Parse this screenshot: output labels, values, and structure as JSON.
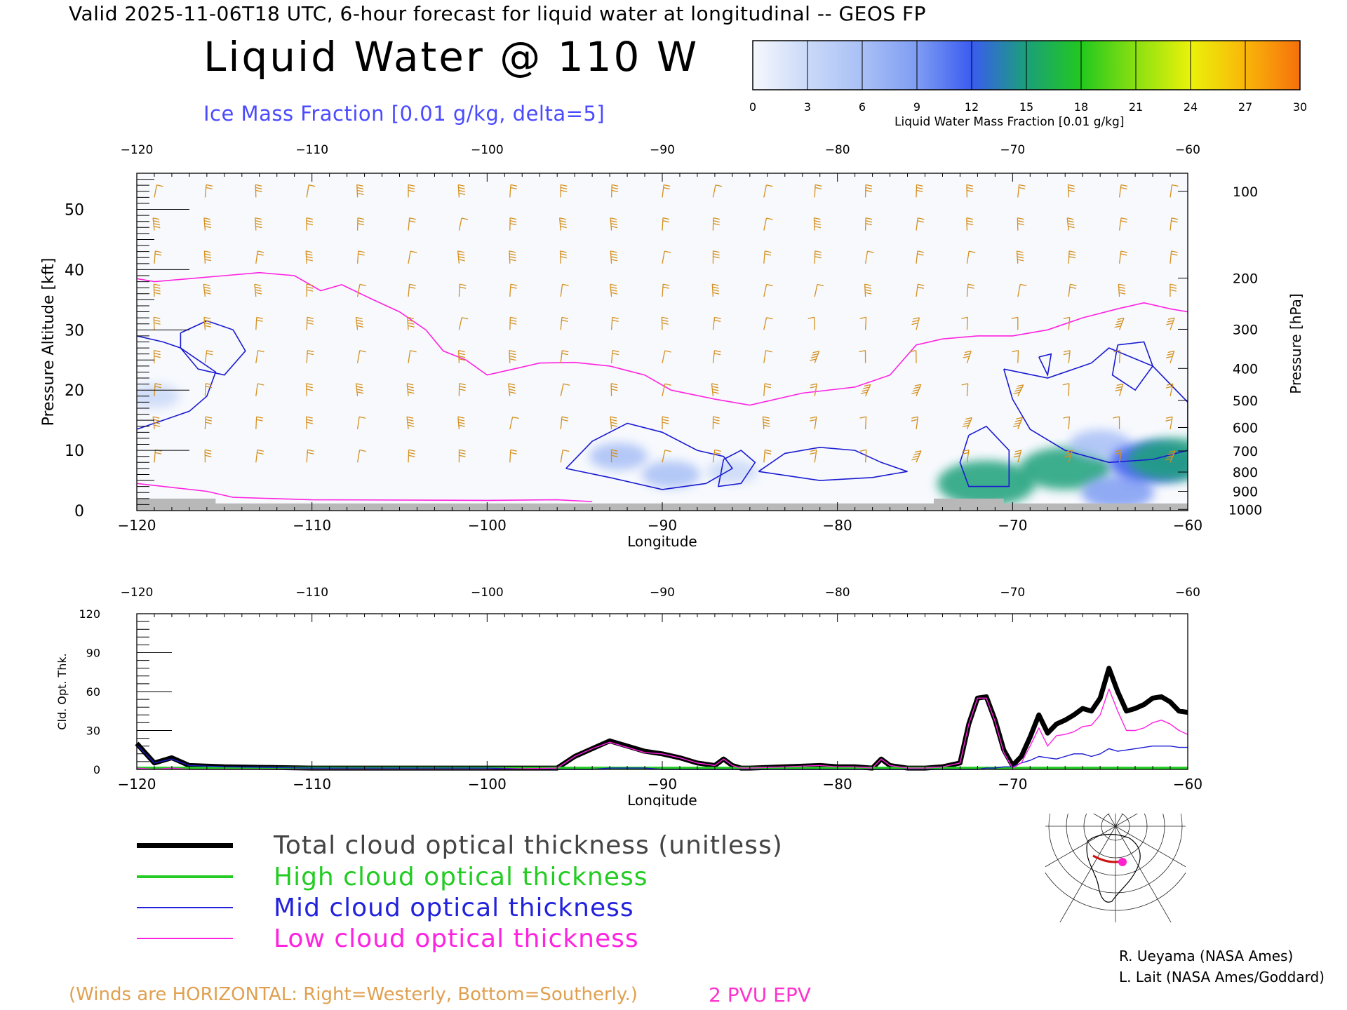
{
  "header": {
    "valid_line": "Valid 2025-11-06T18 UTC, 6-hour forecast for liquid water at longitudinal -- GEOS FP",
    "title": "Liquid Water @ 110 W",
    "subtitle": "Ice Mass Fraction [0.01 g/kg, delta=5]"
  },
  "colorbar": {
    "label": "Liquid Water Mass Fraction [0.01 g/kg]",
    "ticks": [
      "0",
      "3",
      "6",
      "9",
      "12",
      "15",
      "18",
      "21",
      "24",
      "27",
      "30"
    ],
    "colors": [
      "#f6f8fd",
      "#cad9f8",
      "#a9c0f6",
      "#7f9df3",
      "#3a5bf0",
      "#1aa07a",
      "#22c81e",
      "#8ae011",
      "#eaf20a",
      "#f9b60a",
      "#f6700c"
    ]
  },
  "colors": {
    "ice_contour": "#1a1ad0",
    "epv_contour": "#ff22e0",
    "wind_barb": "#d4901e",
    "ground": "#b8b8b8",
    "total": "#000000",
    "high": "#22cc22",
    "mid": "#1a1ad0",
    "low": "#ff22e0"
  },
  "chart_data": [
    {
      "type": "heatmap",
      "title": "Liquid Water @ 110 W",
      "xlabel": "Longitude",
      "ylabel": "Pressure Altitude [kft]",
      "y2label": "Pressure [hPa]",
      "xlim": [
        -120,
        -60
      ],
      "ylim": [
        0,
        56
      ],
      "x_ticks": [
        "-120",
        "-110",
        "-100",
        "-90",
        "-80",
        "-70",
        "-60"
      ],
      "y_ticks": [
        "0",
        "10",
        "20",
        "30",
        "40",
        "50"
      ],
      "pressure_levels": [
        {
          "label": "100",
          "kft": 53.0
        },
        {
          "label": "200",
          "kft": 38.6
        },
        {
          "label": "300",
          "kft": 30.1
        },
        {
          "label": "400",
          "kft": 23.6
        },
        {
          "label": "500",
          "kft": 18.3
        },
        {
          "label": "600",
          "kft": 13.8
        },
        {
          "label": "700",
          "kft": 9.9
        },
        {
          "label": "800",
          "kft": 6.4
        },
        {
          "label": "900",
          "kft": 3.2
        },
        {
          "label": "1000",
          "kft": 0.2
        }
      ],
      "liquid_water_cells": [
        {
          "lon": -119.0,
          "kft": 19.0,
          "value": 3
        },
        {
          "lon": -92.5,
          "kft": 9.0,
          "value": 5
        },
        {
          "lon": -89.5,
          "kft": 6.0,
          "value": 5
        },
        {
          "lon": -86.0,
          "kft": 6.5,
          "value": 3
        },
        {
          "lon": -71.5,
          "kft": 4.5,
          "value": 16
        },
        {
          "lon": -67.0,
          "kft": 7.0,
          "value": 14
        },
        {
          "lon": -65.0,
          "kft": 11.0,
          "value": 6
        },
        {
          "lon": -64.0,
          "kft": 3.0,
          "value": 9
        },
        {
          "lon": -62.0,
          "kft": 8.0,
          "value": 13
        },
        {
          "lon": -60.8,
          "kft": 8.5,
          "value": 14
        }
      ],
      "epv_2pvu_line": [
        [
          -120,
          38.5
        ],
        [
          -119,
          38.0
        ],
        [
          -117,
          38.5
        ],
        [
          -115,
          39.0
        ],
        [
          -113,
          39.5
        ],
        [
          -111,
          39.0
        ],
        [
          -109.5,
          36.5
        ],
        [
          -108.3,
          37.5
        ],
        [
          -106.5,
          35.0
        ],
        [
          -105,
          33.0
        ],
        [
          -103.5,
          30.0
        ],
        [
          -102.5,
          26.5
        ],
        [
          -101.2,
          25.0
        ],
        [
          -100,
          22.5
        ],
        [
          -98.5,
          23.5
        ],
        [
          -97,
          24.5
        ],
        [
          -95,
          24.6
        ],
        [
          -93,
          24.0
        ],
        [
          -91,
          22.5
        ],
        [
          -89.5,
          20.0
        ],
        [
          -87,
          18.5
        ],
        [
          -85,
          17.5
        ],
        [
          -82,
          19.5
        ],
        [
          -79,
          20.5
        ],
        [
          -77,
          22.5
        ],
        [
          -75.5,
          27.5
        ],
        [
          -74,
          28.5
        ],
        [
          -72,
          29.0
        ],
        [
          -70,
          29.0
        ],
        [
          -68,
          30.0
        ],
        [
          -66,
          32.0
        ],
        [
          -64,
          33.5
        ],
        [
          -62.5,
          34.5
        ],
        [
          -61,
          33.5
        ],
        [
          -60,
          33.0
        ]
      ],
      "ice_contours": [
        [
          [
            -120,
            29.0
          ],
          [
            -118.5,
            28.0
          ],
          [
            -117.5,
            27.0
          ],
          [
            -116.5,
            25.0
          ],
          [
            -115.5,
            23.0
          ],
          [
            -116.0,
            19.0
          ],
          [
            -117.0,
            16.5
          ],
          [
            -118.5,
            15.0
          ],
          [
            -120,
            13.5
          ]
        ],
        [
          [
            -117.5,
            29.5
          ],
          [
            -116.0,
            31.5
          ],
          [
            -114.5,
            30.0
          ],
          [
            -113.8,
            26.5
          ],
          [
            -115.0,
            22.5
          ],
          [
            -116.5,
            23.5
          ],
          [
            -117.5,
            27.0
          ],
          [
            -117.5,
            29.5
          ]
        ],
        [
          [
            -95.5,
            7.0
          ],
          [
            -94.0,
            11.5
          ],
          [
            -92.0,
            14.5
          ],
          [
            -90.0,
            13.0
          ],
          [
            -88.0,
            10.0
          ],
          [
            -86.5,
            9.0
          ],
          [
            -86.0,
            7.0
          ],
          [
            -87.5,
            4.5
          ],
          [
            -90.0,
            3.5
          ],
          [
            -93.0,
            5.5
          ],
          [
            -95.5,
            7.0
          ]
        ],
        [
          [
            -84.5,
            6.5
          ],
          [
            -83.0,
            9.5
          ],
          [
            -81.0,
            10.5
          ],
          [
            -79.0,
            10.0
          ],
          [
            -77.5,
            8.0
          ],
          [
            -76.0,
            6.5
          ],
          [
            -78.0,
            5.5
          ],
          [
            -81.0,
            5.0
          ],
          [
            -84.5,
            6.5
          ]
        ],
        [
          [
            -86.5,
            8.5
          ],
          [
            -85.5,
            10.0
          ],
          [
            -84.7,
            8.0
          ],
          [
            -85.5,
            4.5
          ],
          [
            -86.8,
            4.0
          ],
          [
            -86.5,
            8.5
          ]
        ],
        [
          [
            -72.5,
            12.5
          ],
          [
            -71.5,
            14.0
          ],
          [
            -70.2,
            10.0
          ],
          [
            -70.2,
            4.0
          ],
          [
            -72.5,
            4.0
          ],
          [
            -73.0,
            8.0
          ],
          [
            -72.5,
            12.5
          ]
        ],
        [
          [
            -70.5,
            23.5
          ],
          [
            -70.0,
            18.5
          ],
          [
            -69.0,
            13.5
          ],
          [
            -67.0,
            10.0
          ],
          [
            -64.5,
            8.0
          ],
          [
            -62.0,
            8.5
          ],
          [
            -60.0,
            10.0
          ],
          [
            -60.0,
            18.0
          ],
          [
            -62.0,
            24.0
          ],
          [
            -64.5,
            27.0
          ],
          [
            -65.5,
            24.5
          ],
          [
            -68.0,
            22.0
          ],
          [
            -70.5,
            23.5
          ]
        ],
        [
          [
            -68.5,
            25.5
          ],
          [
            -68.0,
            22.5
          ],
          [
            -67.8,
            26.0
          ],
          [
            -68.5,
            25.5
          ]
        ],
        [
          [
            -64.0,
            27.5
          ],
          [
            -62.5,
            28.0
          ],
          [
            -62.0,
            24.0
          ],
          [
            -63.0,
            20.0
          ],
          [
            -64.3,
            22.5
          ],
          [
            -64.0,
            27.5
          ]
        ]
      ]
    },
    {
      "type": "line",
      "xlabel": "Longitude",
      "ylabel": "Cld. Opt. Thk.",
      "xlim": [
        -120,
        -60
      ],
      "ylim": [
        0,
        120
      ],
      "x_ticks": [
        "-120",
        "-110",
        "-100",
        "-90",
        "-80",
        "-70",
        "-60"
      ],
      "y_ticks": [
        "0",
        "30",
        "60",
        "90",
        "120"
      ],
      "x": [
        -120,
        -119,
        -118,
        -117,
        -115,
        -110,
        -105,
        -100,
        -96,
        -95,
        -94,
        -93,
        -92,
        -91,
        -90,
        -89,
        -88,
        -87,
        -86.5,
        -86,
        -85.5,
        -85,
        -83,
        -81,
        -80,
        -79,
        -78,
        -77.5,
        -77,
        -76,
        -75,
        -74,
        -73,
        -72.5,
        -72,
        -71.5,
        -71,
        -70.5,
        -70,
        -69.5,
        -69,
        -68.5,
        -68,
        -67.5,
        -67,
        -66.5,
        -66,
        -65.5,
        -65,
        -64.5,
        -64,
        -63.5,
        -63,
        -62.5,
        -62,
        -61.5,
        -61,
        -60.5,
        -60
      ],
      "series": [
        {
          "name": "Total cloud optical thickness (unitless)",
          "values": [
            20,
            5,
            9,
            3,
            2,
            1,
            1,
            1,
            1,
            10,
            16,
            22,
            18,
            14,
            12,
            9,
            5,
            3,
            8,
            3,
            1,
            1,
            2,
            3,
            2,
            2,
            1,
            8,
            3,
            1,
            1,
            2,
            5,
            35,
            55,
            56,
            38,
            15,
            3,
            10,
            25,
            42,
            28,
            35,
            38,
            42,
            47,
            45,
            55,
            78,
            60,
            45,
            47,
            50,
            55,
            56,
            52,
            45,
            44
          ]
        },
        {
          "name": "High cloud optical thickness",
          "values": [
            1,
            1,
            1,
            1,
            1,
            1,
            1,
            1,
            1,
            1,
            1,
            1,
            1,
            1,
            1,
            1,
            1,
            1,
            1,
            1,
            1,
            1,
            1,
            1,
            1,
            1,
            1,
            1,
            1,
            1,
            1,
            1,
            1,
            1,
            1,
            1,
            1,
            1,
            1,
            1,
            1,
            1,
            1,
            1,
            1,
            1,
            1,
            1,
            1,
            1,
            1,
            1,
            1,
            1,
            1,
            1,
            1,
            1,
            1
          ]
        },
        {
          "name": "Mid cloud optical thickness",
          "values": [
            19,
            5,
            8,
            3,
            2,
            1,
            1,
            1,
            0,
            0,
            0,
            1,
            1,
            1,
            0,
            0,
            0,
            0,
            0,
            0,
            0,
            0,
            0,
            0,
            0,
            0,
            0,
            0,
            0,
            0,
            0,
            0,
            0,
            0,
            0,
            1,
            1,
            2,
            2,
            5,
            7,
            10,
            9,
            8,
            10,
            12,
            12,
            10,
            12,
            16,
            14,
            15,
            16,
            17,
            18,
            18,
            18,
            17,
            17
          ]
        },
        {
          "name": "Low cloud optical thickness",
          "values": [
            1,
            0,
            1,
            0,
            0,
            0,
            0,
            0,
            1,
            10,
            16,
            21,
            17,
            13,
            12,
            9,
            5,
            3,
            8,
            3,
            1,
            1,
            2,
            3,
            2,
            2,
            1,
            8,
            3,
            1,
            1,
            2,
            5,
            35,
            55,
            55,
            37,
            13,
            1,
            5,
            18,
            32,
            18,
            26,
            27,
            29,
            33,
            34,
            42,
            62,
            45,
            30,
            30,
            32,
            36,
            38,
            35,
            30,
            27
          ]
        }
      ]
    }
  ],
  "legend": [
    {
      "label": "Total cloud optical thickness (unitless)",
      "color": "#000000"
    },
    {
      "label": "High cloud optical thickness",
      "color": "#22cc22"
    },
    {
      "label": "Mid cloud optical thickness",
      "color": "#2222dd"
    },
    {
      "label": "Low cloud optical thickness",
      "color": "#ff22e0"
    }
  ],
  "notes": {
    "winds": "(Winds are HORIZONTAL: Right=Westerly, Bottom=Southerly.)",
    "epv": "2 PVU EPV",
    "credit_1": "R. Ueyama (NASA Ames)",
    "credit_2": "L. Lait (NASA Ames/Goddard)"
  }
}
